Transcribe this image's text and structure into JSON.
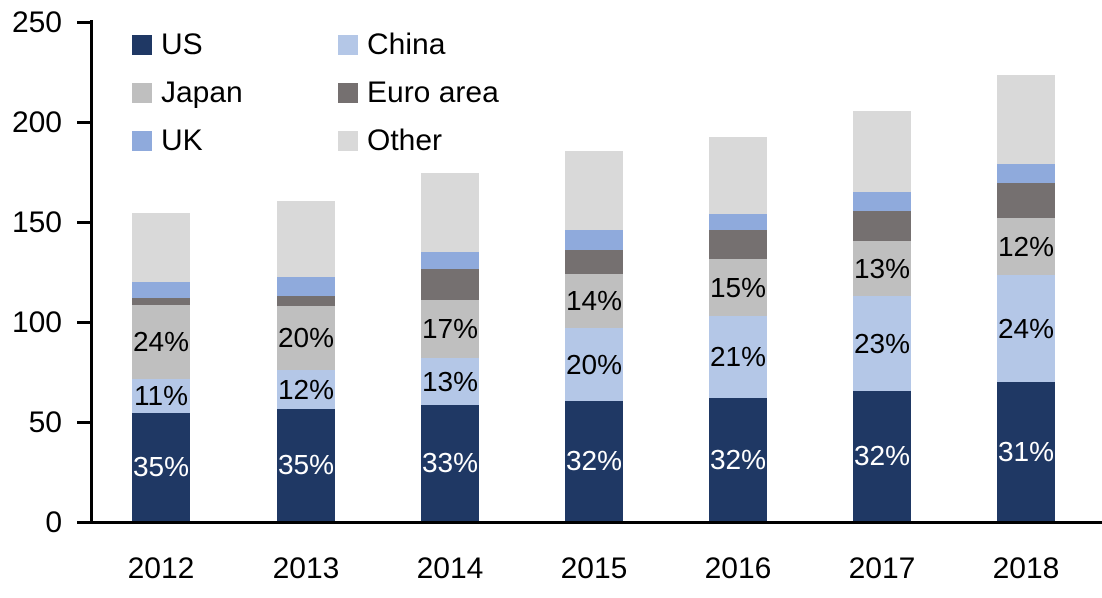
{
  "chart_data": {
    "type": "bar",
    "stacked": true,
    "title": "",
    "xlabel": "",
    "ylabel": "",
    "categories": [
      "2012",
      "2013",
      "2014",
      "2015",
      "2016",
      "2017",
      "2018"
    ],
    "series": [
      {
        "name": "US",
        "color": "#1F3864",
        "label_color": "#FFFFFF",
        "values": [
          54,
          56,
          58,
          60,
          61.5,
          65,
          69.5
        ],
        "labels": [
          "35%",
          "35%",
          "33%",
          "32%",
          "32%",
          "32%",
          "31%"
        ]
      },
      {
        "name": "China",
        "color": "#B4C7E7",
        "label_color": "#000000",
        "values": [
          17,
          19.5,
          23.5,
          36.5,
          41,
          47.5,
          53.5
        ],
        "labels": [
          "11%",
          "12%",
          "13%",
          "20%",
          "21%",
          "23%",
          "24%"
        ]
      },
      {
        "name": "Japan",
        "color": "#BFBFBF",
        "label_color": "#000000",
        "values": [
          37,
          32,
          29,
          27,
          28.5,
          27.5,
          28.5
        ],
        "labels": [
          "24%",
          "20%",
          "17%",
          "14%",
          "15%",
          "13%",
          "12%"
        ]
      },
      {
        "name": "Euro area",
        "color": "#757070",
        "label_color": "#000000",
        "values": [
          3.5,
          5,
          15.5,
          12,
          14.5,
          15,
          17.5
        ],
        "labels": [
          null,
          null,
          null,
          null,
          null,
          null,
          null
        ]
      },
      {
        "name": "UK",
        "color": "#8FAADC",
        "label_color": "#000000",
        "values": [
          8,
          9.5,
          8.5,
          10,
          8,
          9.5,
          9.5
        ],
        "labels": [
          null,
          null,
          null,
          null,
          null,
          null,
          null
        ]
      },
      {
        "name": "Other",
        "color": "#D9D9D9",
        "label_color": "#000000",
        "values": [
          34.5,
          38,
          39.5,
          39.5,
          38.5,
          40.5,
          44.5
        ],
        "labels": [
          null,
          null,
          null,
          null,
          null,
          null,
          null
        ]
      }
    ],
    "totals": [
      154,
      160,
      174,
      185,
      192,
      205,
      223
    ],
    "y_axis": {
      "min": 0,
      "max": 250,
      "tick_labels": [
        "0",
        "50",
        "100",
        "150",
        "200",
        "250"
      ],
      "tick_values": [
        0,
        50,
        100,
        150,
        200,
        250
      ]
    },
    "legend": {
      "position": "top-left",
      "columns": 2,
      "items": [
        "US",
        "China",
        "Japan",
        "Euro area",
        "UK",
        "Other"
      ]
    },
    "grid": false,
    "axis_color": "#000000",
    "background_color": "#FFFFFF"
  }
}
